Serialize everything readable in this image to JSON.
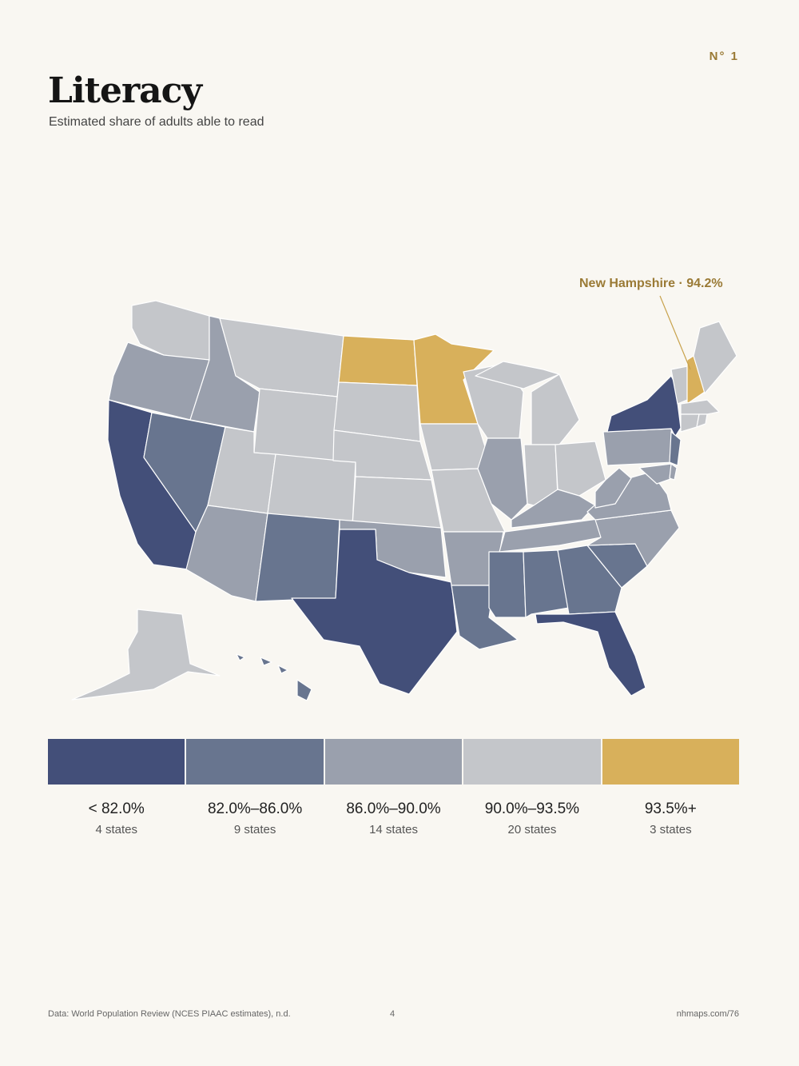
{
  "header": {
    "badge": "N° 1",
    "title": "Literacy",
    "subtitle": "Estimated share of adults able to read"
  },
  "callout": {
    "label": "New Hampshire · 94.2%"
  },
  "colors": {
    "c1": "#434f79",
    "c2": "#68758f",
    "c3": "#9aa0ad",
    "c4": "#c4c6ca",
    "c5": "#d8b05b",
    "accent": "#9a7a35",
    "stroke": "#ffffff"
  },
  "legend": [
    {
      "range": "< 82.0%",
      "count": "4 states",
      "color": "#434f79"
    },
    {
      "range": "82.0%–86.0%",
      "count": "9 states",
      "color": "#68758f"
    },
    {
      "range": "86.0%–90.0%",
      "count": "14 states",
      "color": "#9aa0ad"
    },
    {
      "range": "90.0%–93.5%",
      "count": "20 states",
      "color": "#c4c6ca"
    },
    {
      "range": "93.5%+",
      "count": "3 states",
      "color": "#d8b05b"
    }
  ],
  "footer": {
    "source": "Data: World Population Review (NCES PIAAC estimates), n.d.",
    "page": "4",
    "url": "nhmaps.com/76"
  }
}
